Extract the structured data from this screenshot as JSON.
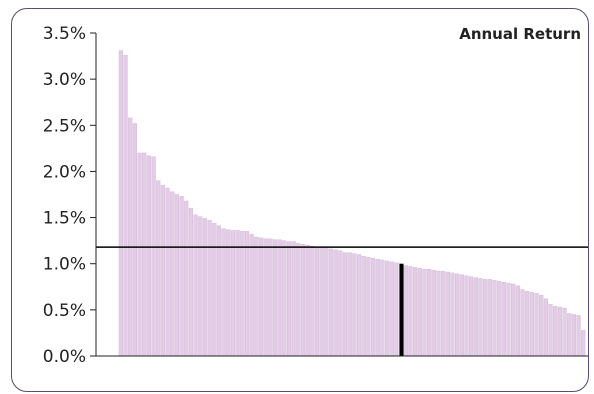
{
  "chart_data": {
    "type": "bar",
    "title": "Annual Return",
    "xlabel": "",
    "ylabel": "",
    "ylim": [
      0,
      3.5
    ],
    "ytick_values": [
      0,
      0.5,
      1.0,
      1.5,
      2.0,
      2.5,
      3.0,
      3.5
    ],
    "ytick_labels": [
      "0.0%",
      "0.5%",
      "1.0%",
      "1.5%",
      "2.0%",
      "2.5%",
      "3.0%",
      "3.5%"
    ],
    "grid": false,
    "bar_color": "#e3cde6",
    "bar_edge_color": "#cfb2d4",
    "values": [
      3.31,
      3.26,
      2.58,
      2.52,
      2.2,
      2.2,
      2.17,
      2.16,
      1.9,
      1.85,
      1.82,
      1.78,
      1.75,
      1.73,
      1.68,
      1.6,
      1.53,
      1.51,
      1.49,
      1.47,
      1.44,
      1.41,
      1.38,
      1.37,
      1.36,
      1.36,
      1.35,
      1.35,
      1.32,
      1.29,
      1.28,
      1.27,
      1.27,
      1.26,
      1.26,
      1.25,
      1.24,
      1.24,
      1.22,
      1.21,
      1.2,
      1.19,
      1.18,
      1.18,
      1.17,
      1.16,
      1.15,
      1.14,
      1.12,
      1.12,
      1.11,
      1.1,
      1.08,
      1.07,
      1.06,
      1.05,
      1.04,
      1.03,
      1.02,
      1.01,
      1.0,
      0.98,
      0.97,
      0.96,
      0.95,
      0.94,
      0.94,
      0.93,
      0.92,
      0.92,
      0.91,
      0.9,
      0.89,
      0.88,
      0.87,
      0.86,
      0.85,
      0.84,
      0.83,
      0.83,
      0.82,
      0.81,
      0.8,
      0.79,
      0.78,
      0.76,
      0.72,
      0.7,
      0.69,
      0.68,
      0.66,
      0.62,
      0.56,
      0.54,
      0.53,
      0.52,
      0.46,
      0.45,
      0.44,
      0.28
    ],
    "highlight_index": 60,
    "highlight_value": 1.0,
    "highlight_color": "#000000",
    "reference_line_value": 1.18,
    "reference_line_color": "#000000"
  }
}
